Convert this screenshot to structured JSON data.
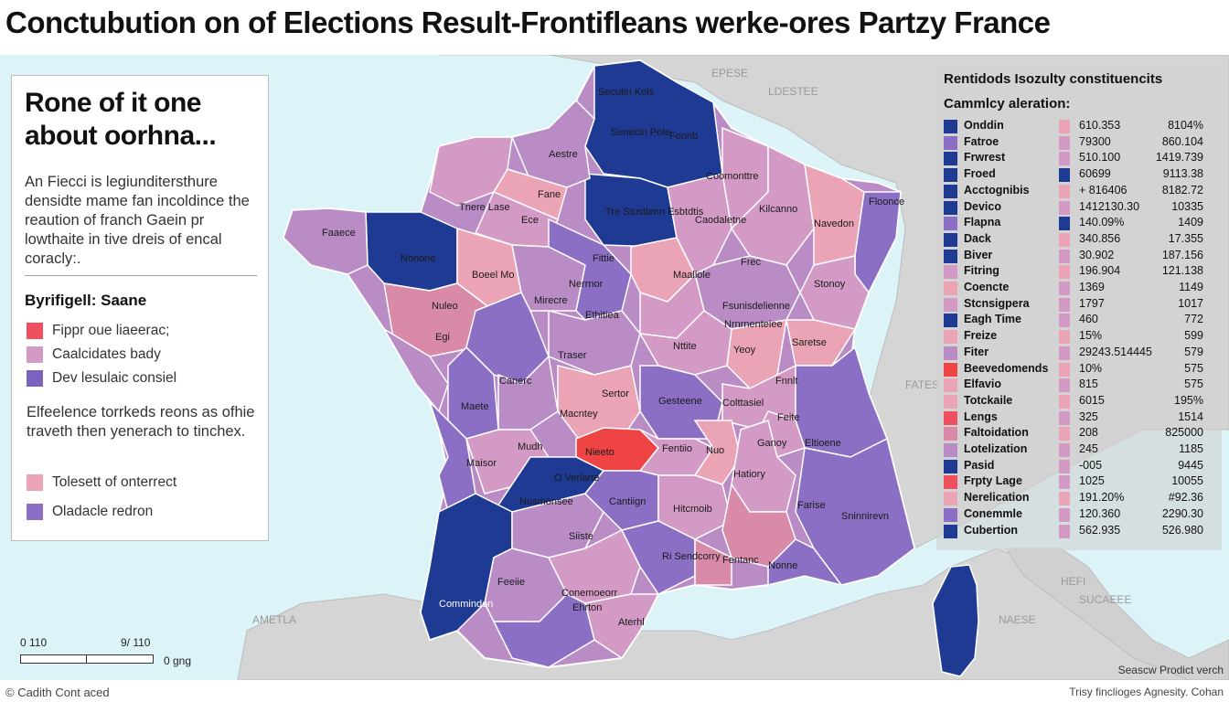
{
  "title": "Conctubution on of Elections Result-Frontifleans werke-ores Partzy France",
  "colors": {
    "navy": "#1f3a93",
    "lavender": "#8a6fc4",
    "lilac": "#b98cc6",
    "light_pink": "#eba4b5",
    "dusty_pink": "#d98aa8",
    "red": "#ef4444",
    "sea": "#dcf3f8",
    "land_bg": "#d5d5d5"
  },
  "left_panel": {
    "heading_line1": "Rone of it one",
    "heading_line2": "about oorhna...",
    "description": "An Fiecci is legiunditersthure densidte mame fan incoldince the reaution of franch Gaein pr lowthaite in tive dreis of encal coracly:.",
    "subheading": "Byrifigell: Saane",
    "legend": [
      {
        "label": "Fippr oue liaeerac;",
        "color": "#ef4f5e"
      },
      {
        "label": "Caalcidates bady",
        "color": "#d49ac6"
      },
      {
        "label": "Dev lesulaic consiel",
        "color": "#7a63be"
      }
    ],
    "note": "Elfeelence torrkeds reons as ofhie traveth then yenerach to tinchex.",
    "legend2": [
      {
        "label": "Tolesett of onterrect",
        "color": "#eba4b5"
      },
      {
        "label": "Oladacle redron",
        "color": "#8a6fc4"
      }
    ]
  },
  "right_panel": {
    "title": "Rentidods Isozulty constituencits",
    "subtitle": "Cammlcy aleration:",
    "rows": [
      {
        "name": "Onddin",
        "c1": "#1f3a93",
        "c2": "#eba4b5",
        "v1": "610.353",
        "v2": "8104%"
      },
      {
        "name": "Fatroe",
        "c1": "#8a6fc4",
        "c2": "#d49ac6",
        "v1": "79300",
        "v2": "860.104"
      },
      {
        "name": "Frwrest",
        "c1": "#1f3a93",
        "c2": "#d49ac6",
        "v1": "510.100",
        "v2": "1419.739"
      },
      {
        "name": "Froed",
        "c1": "#1f3a93",
        "c2": "#1f3a93",
        "v1": "60699",
        "v2": "9113.38"
      },
      {
        "name": "Acctognibis",
        "c1": "#1f3a93",
        "c2": "#eba4b5",
        "v1": "+ 816406",
        "v2": "8182.72"
      },
      {
        "name": "Devico",
        "c1": "#1f3a93",
        "c2": "#d49ac6",
        "v1": "1412130.30",
        "v2": "10335"
      },
      {
        "name": "Flapna",
        "c1": "#8a6fc4",
        "c2": "#1f3a93",
        "v1": "140.09%",
        "v2": "1409"
      },
      {
        "name": "Dack",
        "c1": "#1f3a93",
        "c2": "#eba4b5",
        "v1": "340.856",
        "v2": "17.355"
      },
      {
        "name": "Biver",
        "c1": "#1f3a93",
        "c2": "#d49ac6",
        "v1": "30.902",
        "v2": "187.156"
      },
      {
        "name": "Fitring",
        "c1": "#d49ac6",
        "c2": "#eba4b5",
        "v1": "196.904",
        "v2": "121.138"
      },
      {
        "name": "Coencte",
        "c1": "#eba4b5",
        "c2": "#d49ac6",
        "v1": "1369",
        "v2": "1149"
      },
      {
        "name": "Stcnsigpera",
        "c1": "#d49ac6",
        "c2": "#d49ac6",
        "v1": "1797",
        "v2": "1017"
      },
      {
        "name": "Eagh Time",
        "c1": "#1f3a93",
        "c2": "#d49ac6",
        "v1": "460",
        "v2": "772"
      },
      {
        "name": "Freize",
        "c1": "#eba4b5",
        "c2": "#eba4b5",
        "v1": "15%",
        "v2": "599"
      },
      {
        "name": "Fiter",
        "c1": "#b98cc6",
        "c2": "#d49ac6",
        "v1": "29243.514445",
        "v2": "579"
      },
      {
        "name": "Beevedomends",
        "c1": "#ef4444",
        "c2": "#eba4b5",
        "v1": "10%",
        "v2": "575"
      },
      {
        "name": "Elfavio",
        "c1": "#eba4b5",
        "c2": "#d49ac6",
        "v1": "815",
        "v2": "575"
      },
      {
        "name": "Totckaile",
        "c1": "#eba4b5",
        "c2": "#eba4b5",
        "v1": "6015",
        "v2": "195%"
      },
      {
        "name": "Lengs",
        "c1": "#ef4f5e",
        "c2": "#d49ac6",
        "v1": "325",
        "v2": "1514"
      },
      {
        "name": "Faltoidation",
        "c1": "#d98aa8",
        "c2": "#eba4b5",
        "v1": "208",
        "v2": "825000"
      },
      {
        "name": "Lotelization",
        "c1": "#b98cc6",
        "c2": "#d49ac6",
        "v1": "245",
        "v2": "1185"
      },
      {
        "name": "Pasid",
        "c1": "#1f3a93",
        "c2": "#d49ac6",
        "v1": "-005",
        "v2": "9445"
      },
      {
        "name": "Frpty Lage",
        "c1": "#ef4f5e",
        "c2": "#d49ac6",
        "v1": "1025",
        "v2": "10055"
      },
      {
        "name": "Nerelication",
        "c1": "#eba4b5",
        "c2": "#eba4b5",
        "v1": "191.20%",
        "v2": "#92.36"
      },
      {
        "name": "Conemmle",
        "c1": "#8a6fc4",
        "c2": "#d49ac6",
        "v1": "120.360",
        "v2": "2290.30"
      },
      {
        "name": "Cubertion",
        "c1": "#1f3a93",
        "c2": "#d49ac6",
        "v1": "562.935",
        "v2": "526.980"
      }
    ]
  },
  "map_labels": [
    "Secutin Kols",
    "Senecin Pole",
    "Fonnb",
    "Aestre",
    "Coomonttre",
    "Fane",
    "Tnere Lase",
    "Ece",
    "Tre Stustlenn Esbtdtis",
    "Caodaletne",
    "Kilcanno",
    "Navedon",
    "Floonce",
    "Faaece",
    "Nonone",
    "Boeel Mo",
    "Fittie",
    "Maaliole",
    "Frec",
    "Nerrnor",
    "Stonoy",
    "Nuleo",
    "Mirecre",
    "Ethitiea",
    "Fsunisdelienne",
    "Nrnrnenteiee",
    "Egi",
    "Traser",
    "Nttite",
    "Yeoy",
    "Saretse",
    "Canerc",
    "Fnnlt",
    "Sertor",
    "Gesteene",
    "Colttasiel",
    "Maete",
    "Macntey",
    "Feite",
    "Eltioene",
    "Ganoy",
    "Nieeto",
    "Fentiio",
    "Nuo",
    "Mudh",
    "Maisor",
    "O Verlarte",
    "Hatiory",
    "Nusmonsee",
    "Cantiign",
    "Hitcmoib",
    "Farise",
    "Sninnirevn",
    "Siiste",
    "Ri Sendcorry",
    "Nonne",
    "Fentanc",
    "Feeiie",
    "Conemoeorr",
    "Commindon",
    "Aterhl",
    "Ehrton"
  ],
  "background_labels": [
    "EPESE",
    "LDESTEE",
    "FATES",
    "HEFI",
    "SUCAEEE",
    "NAESE",
    "AMETLA"
  ],
  "scale": {
    "left": "0 110",
    "right": "9/ 110",
    "unit": "0 gng"
  },
  "footer": {
    "left": "© Cadith Cont aced",
    "right": "Trisy finclioges Agnesity. Cohan",
    "right_upper": "Seascw Prodict verch"
  }
}
